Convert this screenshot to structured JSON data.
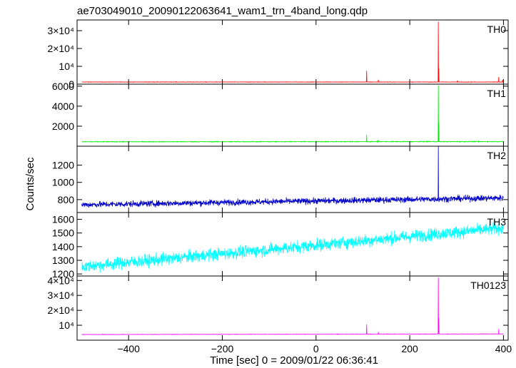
{
  "chart_data": {
    "type": "line",
    "title": "ae703049010_20090122063641_wam1_trn_4band_long.qdp",
    "xlabel": "Time [sec] 0 = 2009/01/22 06:36:41",
    "ylabel": "Counts/sec",
    "xlim": [
      -510,
      410
    ],
    "x_ticks": [
      -400,
      -200,
      0,
      200,
      400
    ],
    "x_tick_labels": [
      "−400",
      "−200",
      "0",
      "200",
      "400"
    ],
    "grid": false,
    "panels": [
      {
        "name": "TH0",
        "color": "#ff0000",
        "ylim": [
          0,
          36000
        ],
        "y_ticks": [
          0,
          10000,
          20000,
          30000
        ],
        "y_tick_labels": [
          "0",
          "10⁴",
          "2×10⁴",
          "3×10⁴"
        ],
        "baseline": 1200,
        "noise": 120,
        "trend": 0,
        "spikes": [
          {
            "x": 108,
            "y": 7500
          },
          {
            "x": 133,
            "y": 2500
          },
          {
            "x": 261,
            "y": 35000
          },
          {
            "x": 262,
            "y": 9000
          },
          {
            "x": 302,
            "y": 2000
          },
          {
            "x": 390,
            "y": 4000
          },
          {
            "x": 398,
            "y": 2500
          }
        ]
      },
      {
        "name": "TH1",
        "color": "#00ee00",
        "ylim": [
          0,
          6200
        ],
        "y_ticks": [
          2000,
          4000,
          6000
        ],
        "y_tick_labels": [
          "2000",
          "4000",
          "6000"
        ],
        "baseline": 440,
        "noise": 35,
        "trend": 20,
        "spikes": [
          {
            "x": 108,
            "y": 1150
          },
          {
            "x": 133,
            "y": 620
          },
          {
            "x": 261,
            "y": 6050
          },
          {
            "x": 262,
            "y": 2300
          }
        ]
      },
      {
        "name": "TH2",
        "color": "#0000cc",
        "ylim": [
          650,
          1420
        ],
        "y_ticks": [
          800,
          1000,
          1200
        ],
        "y_tick_labels": [
          "800",
          "1000",
          "1200"
        ],
        "baseline": 740,
        "noise": 35,
        "trend": 80,
        "spikes": [
          {
            "x": 261,
            "y": 1420
          }
        ]
      },
      {
        "name": "TH3",
        "color": "#00ffff",
        "ylim": [
          1185,
          1650
        ],
        "y_ticks": [
          1200,
          1300,
          1400,
          1500,
          1600
        ],
        "y_tick_labels": [
          "1200",
          "1300",
          "1400",
          "1500",
          "1600"
        ],
        "baseline": 1250,
        "noise": 45,
        "trend": 290,
        "spikes": []
      },
      {
        "name": "TH0123",
        "color": "#ff00ff",
        "ylim": [
          0,
          43000
        ],
        "y_ticks": [
          10000,
          20000,
          30000,
          40000
        ],
        "y_tick_labels": [
          "10⁴",
          "2×10⁴",
          "3×10⁴",
          "4×10⁴"
        ],
        "baseline": 3800,
        "noise": 140,
        "trend": 400,
        "spikes": [
          {
            "x": 108,
            "y": 10500
          },
          {
            "x": 133,
            "y": 5500
          },
          {
            "x": 261,
            "y": 42000
          },
          {
            "x": 262,
            "y": 15000
          },
          {
            "x": 390,
            "y": 7500
          }
        ]
      }
    ]
  }
}
